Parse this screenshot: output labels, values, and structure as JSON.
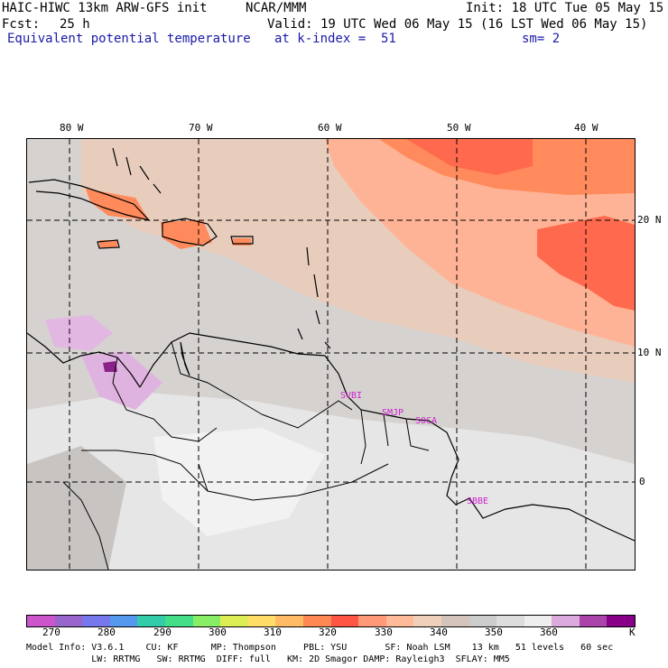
{
  "header": {
    "model_title": "HAIC-HIWC 13km ARW-GFS init",
    "agency": "NCAR/MMM",
    "init": "Init: 18 UTC Tue 05 May 15",
    "fcst_label": "Fcst:",
    "fcst_value": "25 h",
    "valid": "Valid: 19 UTC Wed 06 May 15 (16 LST Wed 06 May 15)",
    "field": "Equivalent potential temperature",
    "level": "at k-index =  51",
    "smoothing": "sm= 2"
  },
  "map": {
    "lon_labels": [
      "80 W",
      "70 W",
      "60 W",
      "50 W",
      "40 W"
    ],
    "lat_labels": [
      "20 N",
      "10 N",
      "0"
    ],
    "stations": [
      "SVBI",
      "SMJP",
      "SOCA",
      "SBBE"
    ]
  },
  "colorbar": {
    "labels": [
      "270",
      "280",
      "290",
      "300",
      "310",
      "320",
      "330",
      "340",
      "350",
      "360"
    ],
    "unit": "K",
    "colors": [
      "#cc55cc",
      "#9966cc",
      "#7777ee",
      "#5599ee",
      "#33ccaa",
      "#44dd88",
      "#88ee66",
      "#ddee55",
      "#ffdd66",
      "#ffbb66",
      "#ff8855",
      "#ff5544",
      "#ff9977",
      "#ffbb99",
      "#eed0bb",
      "#d4c4bc",
      "#cccccc",
      "#dddddd",
      "#eeeeee",
      "#ddaadd",
      "#aa44aa",
      "#880088"
    ]
  },
  "footer": {
    "line1": "Model Info: V3.6.1    CU: KF      MP: Thompson     PBL: YSU       SF: Noah LSM    13 km   51 levels   60 sec",
    "line2": "            LW: RRTMG   SW: RRTMG  DIFF: full   KM: 2D Smagor DAMP: Rayleigh3  SFLAY: MM5"
  }
}
